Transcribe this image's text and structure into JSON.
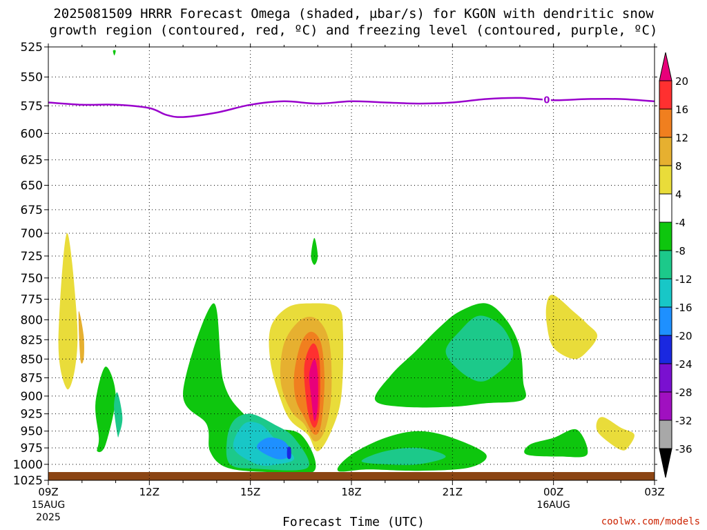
{
  "title": {
    "line1": "2025081509 HRRR Forecast Omega (shaded, µbar/s) for KGON with dendritic snow",
    "line2": "growth region (contoured, red, ºC) and freezing level (contoured, purple, ºC)"
  },
  "credit": "coolwx.com/models",
  "chart_data": {
    "type": "heatmap",
    "xlabel": "Forecast Time (UTC)",
    "ylabel": "",
    "x_ticks": [
      {
        "hour": 0,
        "label": "09Z",
        "sub1": "15AUG",
        "sub2": "2025"
      },
      {
        "hour": 3,
        "label": "12Z",
        "sub1": "",
        "sub2": ""
      },
      {
        "hour": 6,
        "label": "15Z",
        "sub1": "",
        "sub2": ""
      },
      {
        "hour": 9,
        "label": "18Z",
        "sub1": "",
        "sub2": ""
      },
      {
        "hour": 12,
        "label": "21Z",
        "sub1": "",
        "sub2": ""
      },
      {
        "hour": 15,
        "label": "00Z",
        "sub1": "16AUG",
        "sub2": ""
      },
      {
        "hour": 18,
        "label": "03Z",
        "sub1": "",
        "sub2": ""
      }
    ],
    "xlim": [
      0,
      18
    ],
    "y_ticks": [
      525,
      550,
      575,
      600,
      625,
      650,
      675,
      700,
      725,
      750,
      775,
      800,
      825,
      850,
      875,
      900,
      925,
      950,
      975,
      1000,
      1025
    ],
    "ylim": [
      525,
      1025
    ],
    "y_scale": "log-pressure",
    "grid": true,
    "colorbar": {
      "labels": [
        "20",
        "16",
        "12",
        "8",
        "4",
        "-4",
        "-8",
        "-12",
        "-16",
        "-20",
        "-24",
        "-28",
        "-32",
        "-36"
      ],
      "colors": [
        "#e8007a",
        "#ff3030",
        "#f07f1f",
        "#e6b030",
        "#e9dc3a",
        "#ffffff",
        "#0ec60e",
        "#1cc98a",
        "#18c7c7",
        "#1e90ff",
        "#1a28e0",
        "#7a10d0",
        "#a010c0",
        "#a8a8a8"
      ],
      "top_color": "#e8007a",
      "bottom_color": "#000000"
    },
    "freezing_level": {
      "label": "0",
      "color": "#9900cc",
      "points": [
        [
          0,
          572
        ],
        [
          1,
          574
        ],
        [
          2,
          574
        ],
        [
          3,
          577
        ],
        [
          3.5,
          583
        ],
        [
          4,
          585
        ],
        [
          5,
          581
        ],
        [
          6,
          574
        ],
        [
          7,
          571
        ],
        [
          8,
          573
        ],
        [
          9,
          571
        ],
        [
          10,
          572
        ],
        [
          11,
          573
        ],
        [
          12,
          572
        ],
        [
          13,
          569
        ],
        [
          14,
          568
        ],
        [
          15,
          570
        ],
        [
          16,
          569
        ],
        [
          17,
          569
        ],
        [
          18,
          571
        ]
      ]
    },
    "omega_regions": [
      {
        "value": 4,
        "color": "#e9dc3a",
        "points": [
          [
            0.55,
            890
          ],
          [
            0.3,
            830
          ],
          [
            0.55,
            700
          ],
          [
            0.85,
            800
          ],
          [
            0.8,
            860
          ]
        ]
      },
      {
        "value": 8,
        "color": "#e6b030",
        "points": [
          [
            0.95,
            850
          ],
          [
            0.9,
            790
          ],
          [
            1.05,
            820
          ],
          [
            1.05,
            850
          ]
        ]
      },
      {
        "value": -4,
        "color": "#0ec60e",
        "points": [
          [
            1.5,
            960
          ],
          [
            1.4,
            910
          ],
          [
            1.7,
            860
          ],
          [
            2.0,
            900
          ],
          [
            1.7,
            970
          ],
          [
            1.45,
            980
          ]
        ]
      },
      {
        "value": -8,
        "color": "#1cc98a",
        "points": [
          [
            2.05,
            955
          ],
          [
            1.95,
            915
          ],
          [
            2.05,
            895
          ],
          [
            2.2,
            930
          ],
          [
            2.1,
            955
          ]
        ]
      },
      {
        "value": -4,
        "color": "#0ec60e",
        "points": [
          [
            4.0,
            895
          ],
          [
            4.9,
            780
          ],
          [
            5.2,
            880
          ],
          [
            5.8,
            925
          ],
          [
            6.5,
            945
          ],
          [
            7.5,
            955
          ],
          [
            7.9,
            1010
          ],
          [
            6.5,
            1012
          ],
          [
            5.3,
            1005
          ],
          [
            4.8,
            980
          ],
          [
            4.7,
            940
          ]
        ]
      },
      {
        "value": -8,
        "color": "#1cc98a",
        "points": [
          [
            5.4,
            1000
          ],
          [
            5.3,
            965
          ],
          [
            5.5,
            935
          ],
          [
            6.0,
            925
          ],
          [
            6.7,
            940
          ],
          [
            7.3,
            960
          ],
          [
            7.7,
            1005
          ],
          [
            6.2,
            1007
          ]
        ]
      },
      {
        "value": -12,
        "color": "#18c7c7",
        "points": [
          [
            5.5,
            975
          ],
          [
            5.8,
            940
          ],
          [
            6.3,
            940
          ],
          [
            6.7,
            960
          ],
          [
            7.3,
            990
          ],
          [
            6.8,
            1000
          ],
          [
            6.2,
            1000
          ]
        ]
      },
      {
        "value": -16,
        "color": "#1e90ff",
        "points": [
          [
            6.2,
            975
          ],
          [
            6.5,
            960
          ],
          [
            7.0,
            965
          ],
          [
            7.2,
            985
          ],
          [
            6.8,
            992
          ]
        ]
      },
      {
        "value": -20,
        "color": "#1a28e0",
        "points": [
          [
            7.1,
            975
          ],
          [
            7.2,
            975
          ],
          [
            7.2,
            990
          ],
          [
            7.1,
            990
          ]
        ]
      },
      {
        "value": -4,
        "color": "#0ec60e",
        "points": [
          [
            7.8,
            725
          ],
          [
            7.9,
            705
          ],
          [
            8.0,
            725
          ],
          [
            7.9,
            735
          ]
        ]
      },
      {
        "value": 4,
        "color": "#e9dc3a",
        "points": [
          [
            6.6,
            855
          ],
          [
            6.6,
            810
          ],
          [
            7.1,
            785
          ],
          [
            7.8,
            780
          ],
          [
            8.6,
            785
          ],
          [
            8.75,
            815
          ],
          [
            8.7,
            900
          ],
          [
            8.4,
            950
          ],
          [
            8.0,
            980
          ],
          [
            7.7,
            955
          ],
          [
            7.2,
            935
          ],
          [
            6.9,
            905
          ]
        ]
      },
      {
        "value": 8,
        "color": "#e6b030",
        "points": [
          [
            6.9,
            880
          ],
          [
            7.0,
            830
          ],
          [
            7.5,
            800
          ],
          [
            8.0,
            800
          ],
          [
            8.35,
            830
          ],
          [
            8.4,
            900
          ],
          [
            8.2,
            950
          ],
          [
            7.9,
            965
          ],
          [
            7.6,
            940
          ],
          [
            7.2,
            920
          ]
        ]
      },
      {
        "value": 12,
        "color": "#f07f1f",
        "points": [
          [
            7.3,
            870
          ],
          [
            7.5,
            830
          ],
          [
            7.8,
            815
          ],
          [
            8.1,
            830
          ],
          [
            8.2,
            880
          ],
          [
            8.1,
            940
          ],
          [
            7.9,
            955
          ],
          [
            7.6,
            930
          ],
          [
            7.35,
            905
          ]
        ]
      },
      {
        "value": 16,
        "color": "#ff3030",
        "points": [
          [
            7.6,
            860
          ],
          [
            7.85,
            830
          ],
          [
            8.05,
            850
          ],
          [
            8.05,
            920
          ],
          [
            7.9,
            945
          ],
          [
            7.7,
            920
          ]
        ]
      },
      {
        "value": 20,
        "color": "#e8007a",
        "points": [
          [
            7.75,
            870
          ],
          [
            7.9,
            850
          ],
          [
            8.0,
            870
          ],
          [
            8.0,
            915
          ],
          [
            7.9,
            935
          ],
          [
            7.8,
            900
          ]
        ]
      },
      {
        "value": -4,
        "color": "#0ec60e",
        "points": [
          [
            8.6,
            1010
          ],
          [
            9.0,
            985
          ],
          [
            10.0,
            960
          ],
          [
            11.0,
            950
          ],
          [
            12.0,
            960
          ],
          [
            13.0,
            985
          ],
          [
            12.5,
            1005
          ],
          [
            11.0,
            1010
          ],
          [
            9.5,
            1008
          ]
        ]
      },
      {
        "value": -8,
        "color": "#1cc98a",
        "points": [
          [
            9.3,
            995
          ],
          [
            10.0,
            980
          ],
          [
            11.0,
            975
          ],
          [
            11.8,
            988
          ],
          [
            11.0,
            1000
          ],
          [
            10.0,
            1000
          ]
        ]
      },
      {
        "value": -4,
        "color": "#0ec60e",
        "points": [
          [
            9.7,
            905
          ],
          [
            10.2,
            870
          ],
          [
            10.9,
            840
          ],
          [
            11.6,
            810
          ],
          [
            12.2,
            790
          ],
          [
            13.0,
            780
          ],
          [
            13.6,
            800
          ],
          [
            14.0,
            835
          ],
          [
            14.1,
            880
          ],
          [
            14.1,
            905
          ],
          [
            13.0,
            910
          ],
          [
            12.0,
            915
          ],
          [
            10.5,
            915
          ]
        ]
      },
      {
        "value": -8,
        "color": "#1cc98a",
        "points": [
          [
            11.8,
            840
          ],
          [
            12.2,
            815
          ],
          [
            12.8,
            795
          ],
          [
            13.5,
            810
          ],
          [
            13.8,
            845
          ],
          [
            13.3,
            870
          ],
          [
            12.8,
            880
          ],
          [
            12.2,
            865
          ]
        ]
      },
      {
        "value": -4,
        "color": "#0ec60e",
        "points": [
          [
            14.2,
            985
          ],
          [
            14.3,
            970
          ],
          [
            15.0,
            960
          ],
          [
            15.7,
            948
          ],
          [
            16.0,
            985
          ],
          [
            15.2,
            988
          ]
        ]
      },
      {
        "value": 4,
        "color": "#e9dc3a",
        "points": [
          [
            14.8,
            780
          ],
          [
            15.0,
            770
          ],
          [
            15.6,
            790
          ],
          [
            16.0,
            805
          ],
          [
            16.3,
            820
          ],
          [
            16.0,
            840
          ],
          [
            15.6,
            850
          ],
          [
            15.0,
            835
          ],
          [
            14.8,
            805
          ]
        ]
      },
      {
        "value": 4,
        "color": "#e9dc3a",
        "points": [
          [
            16.3,
            950
          ],
          [
            16.3,
            935
          ],
          [
            16.5,
            930
          ],
          [
            17.0,
            945
          ],
          [
            17.4,
            955
          ],
          [
            17.2,
            975
          ],
          [
            17.0,
            978
          ],
          [
            16.6,
            965
          ]
        ]
      },
      {
        "value": -4,
        "color": "#0ec60e",
        "points": [
          [
            1.92,
            528
          ],
          [
            2.0,
            528
          ],
          [
            1.96,
            532
          ]
        ]
      }
    ],
    "terrain": {
      "color": "#8b4513",
      "surface_pressure": 1012
    }
  }
}
